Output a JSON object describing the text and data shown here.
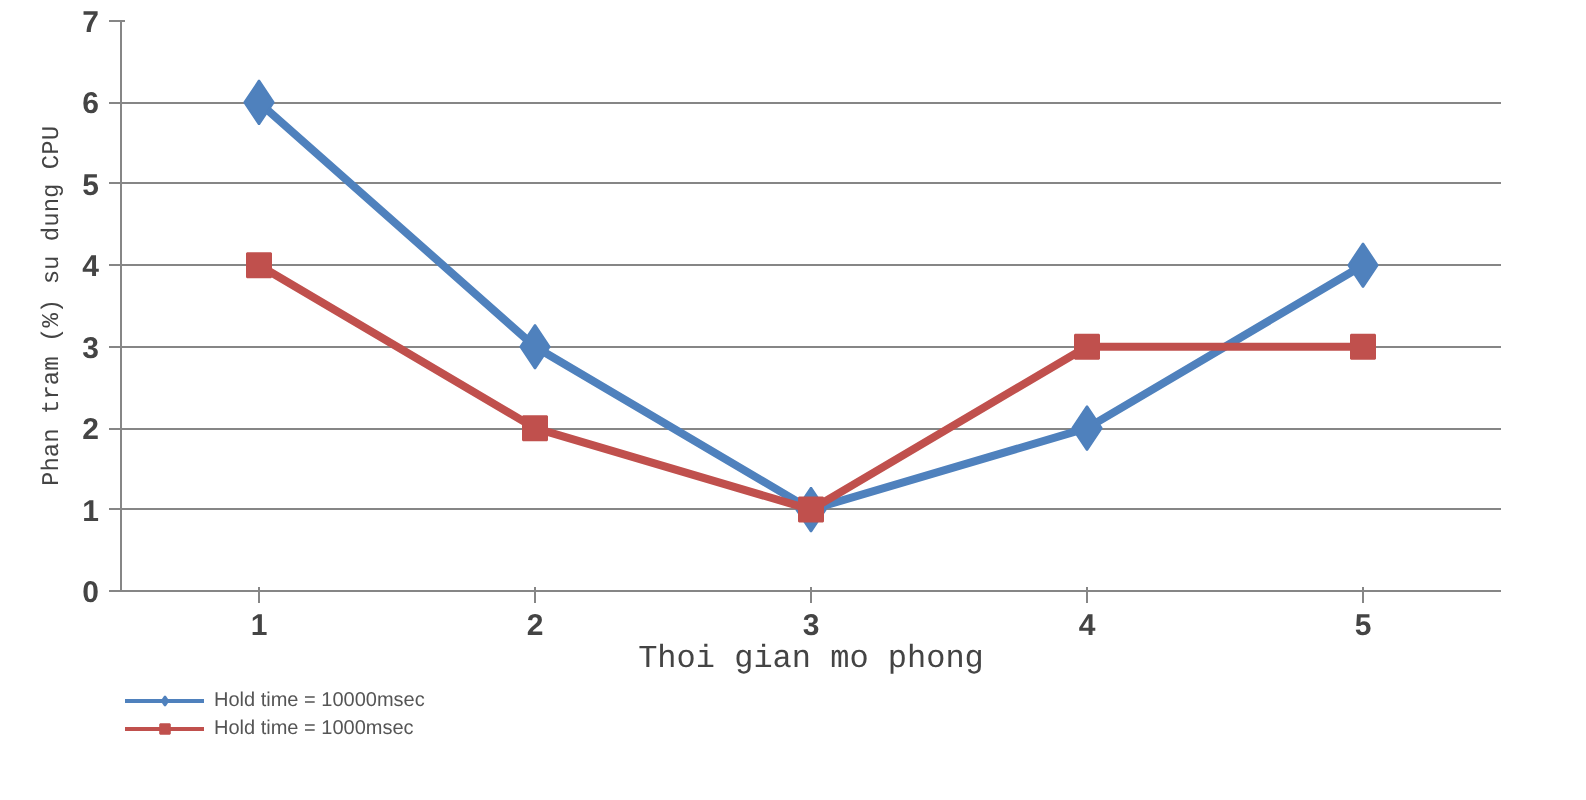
{
  "chart_data": {
    "type": "line",
    "xlabel": "Thoi gian mo phong",
    "ylabel": "Phan tram (%) su dung CPU",
    "categories": [
      "1",
      "2",
      "3",
      "4",
      "5"
    ],
    "series": [
      {
        "name": "Hold time = 10000msec",
        "color": "#4f81bd",
        "values": [
          6,
          3,
          1,
          2,
          4
        ],
        "marker": "diamond"
      },
      {
        "name": "Hold time = 1000msec",
        "color": "#c0504d",
        "values": [
          4,
          2,
          1,
          3,
          3
        ],
        "marker": "square"
      }
    ],
    "ylim": [
      0,
      7
    ],
    "yticks": [
      0,
      1,
      2,
      3,
      4,
      5,
      6,
      7
    ],
    "grid": "y",
    "legend": "bottom left",
    "line_style": "solid"
  }
}
